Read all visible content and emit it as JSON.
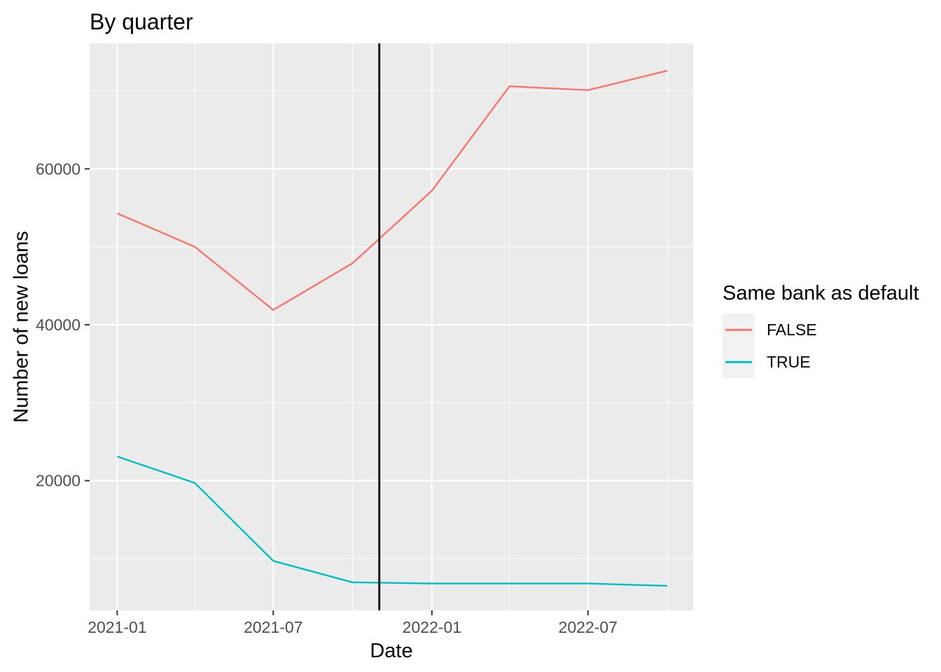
{
  "chart_data": {
    "type": "line",
    "title": "By quarter",
    "xlabel": "Date",
    "ylabel": "Number of new loans",
    "x": [
      "2021-01-01",
      "2021-04-01",
      "2021-07-01",
      "2021-10-01",
      "2022-01-01",
      "2022-04-01",
      "2022-07-01",
      "2022-10-01"
    ],
    "series": [
      {
        "name": "FALSE",
        "color": "#F8766D",
        "values": [
          54300,
          50000,
          41900,
          47900,
          57200,
          70600,
          70100,
          72600
        ]
      },
      {
        "name": "TRUE",
        "color": "#00BFC4",
        "values": [
          23100,
          19700,
          9700,
          6950,
          6800,
          6800,
          6800,
          6500
        ]
      }
    ],
    "vline": {
      "date": "2021-11-01",
      "color": "#000000"
    },
    "x_ticks": [
      {
        "date": "2021-01-01",
        "label": "2021-01"
      },
      {
        "date": "2021-07-01",
        "label": "2021-07"
      },
      {
        "date": "2022-01-01",
        "label": "2022-01"
      },
      {
        "date": "2022-07-01",
        "label": "2022-07"
      }
    ],
    "x_minor": [
      "2021-04-01",
      "2021-10-01",
      "2022-04-01",
      "2022-10-01"
    ],
    "y_ticks": [
      {
        "value": 20000,
        "label": "20000"
      },
      {
        "value": 40000,
        "label": "40000"
      },
      {
        "value": 60000,
        "label": "60000"
      }
    ],
    "y_minor": [
      10000,
      30000,
      50000,
      70000
    ],
    "ylim": [
      3350,
      76100
    ],
    "xlim": [
      "2020-11-30",
      "2022-10-31"
    ],
    "legend": {
      "title": "Same bank as default",
      "position": "right",
      "entries": [
        {
          "label": "FALSE",
          "color": "#F8766D"
        },
        {
          "label": "TRUE",
          "color": "#00BFC4"
        }
      ]
    },
    "colors": {
      "panel_bg": "#EBEBEB",
      "grid": "#FFFFFF",
      "tick": "#333333",
      "tick_label": "#4D4D4D",
      "legend_key_bg": "#F2F2F2"
    }
  }
}
